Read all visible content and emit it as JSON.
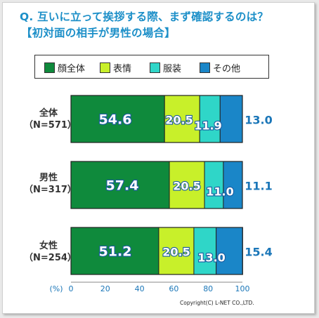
{
  "title_line_1": "Q. 互いに立って挨拶する際、まず確認するのは？",
  "title_line_2": "【初対面の相手が男性の場合】",
  "copyright": "Copyright(C) L-NET CO.,LTD.",
  "colors": {
    "顔全体": "#0f8a3c",
    "表情": "#c8f02a",
    "服装": "#2fd6c8",
    "その他": "#1a86c8",
    "outside_label": "#1a76b8",
    "inside_text": "#ffffff",
    "inside_outline": "#1a5aa0"
  },
  "chart_data": {
    "type": "bar",
    "orientation": "horizontal",
    "stacked": true,
    "categories": [
      {
        "name": "全体",
        "n": "（N=571）"
      },
      {
        "name": "男性",
        "n": "（N=317）"
      },
      {
        "name": "女性",
        "n": "（N=254）"
      }
    ],
    "series": [
      {
        "name": "顔全体",
        "values": [
          54.6,
          57.4,
          51.2
        ],
        "labels": [
          "54.6",
          "57.4",
          "51.2"
        ]
      },
      {
        "name": "表情",
        "values": [
          20.5,
          20.5,
          20.5
        ],
        "labels": [
          "20.5",
          "20.5",
          "20.5"
        ]
      },
      {
        "name": "服装",
        "values": [
          11.9,
          11.0,
          13.0
        ],
        "labels": [
          "11.9",
          "11.0",
          "13.0"
        ]
      },
      {
        "name": "その他",
        "values": [
          13.0,
          11.1,
          15.4
        ],
        "labels": [
          "13.0",
          "11.1",
          "15.4"
        ]
      }
    ],
    "xlim": [
      0,
      100
    ],
    "xticks": [
      "0",
      "20",
      "40",
      "60",
      "80",
      "100"
    ],
    "xunit": "(%)",
    "legend_position": "top"
  }
}
